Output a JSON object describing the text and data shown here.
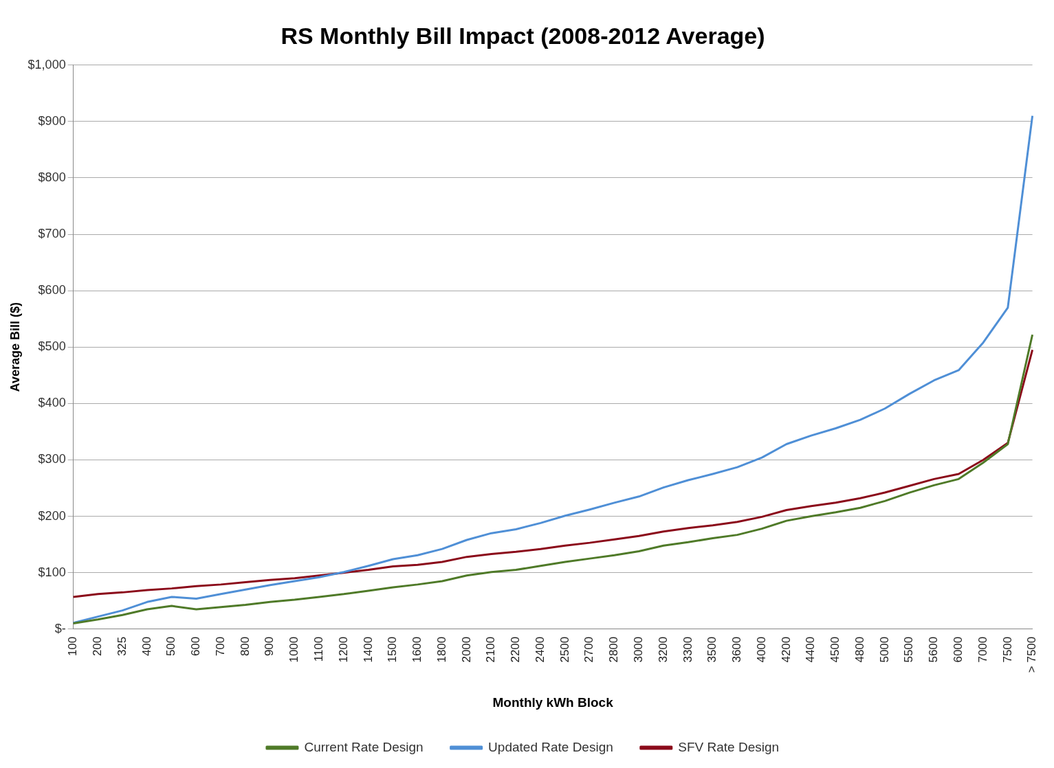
{
  "chart_data": {
    "type": "line",
    "title": "RS Monthly Bill Impact (2008-2012 Average)",
    "xlabel": "Monthly kWh Block",
    "ylabel": "Average Bill ($)",
    "categories": [
      "100",
      "200",
      "325",
      "400",
      "500",
      "600",
      "700",
      "800",
      "900",
      "1000",
      "1100",
      "1200",
      "1400",
      "1500",
      "1600",
      "1800",
      "2000",
      "2100",
      "2200",
      "2400",
      "2500",
      "2700",
      "2800",
      "3000",
      "3200",
      "3300",
      "3500",
      "3600",
      "4000",
      "4200",
      "4400",
      "4500",
      "4800",
      "5000",
      "5500",
      "5600",
      "6000",
      "7000",
      "7500",
      "> 7500"
    ],
    "series": [
      {
        "name": "Current Rate Design",
        "color": "#4f7a28",
        "values": [
          10,
          17,
          25,
          35,
          41,
          35,
          39,
          43,
          48,
          52,
          57,
          62,
          68,
          74,
          79,
          85,
          95,
          101,
          105,
          112,
          119,
          125,
          131,
          138,
          148,
          154,
          161,
          167,
          178,
          192,
          200,
          207,
          215,
          227,
          242,
          255,
          266,
          295,
          328,
          522
        ]
      },
      {
        "name": "Updated Rate Design",
        "color": "#4f8fd6",
        "values": [
          11,
          22,
          33,
          48,
          57,
          54,
          62,
          70,
          78,
          85,
          92,
          101,
          112,
          124,
          131,
          142,
          158,
          170,
          177,
          188,
          201,
          212,
          224,
          235,
          251,
          264,
          275,
          287,
          304,
          328,
          343,
          356,
          371,
          391,
          417,
          441,
          459,
          508,
          570,
          910
        ]
      },
      {
        "name": "SFV Rate Design",
        "color": "#8b0a1a",
        "values": [
          57,
          62,
          65,
          69,
          72,
          76,
          79,
          83,
          87,
          90,
          95,
          100,
          105,
          111,
          114,
          119,
          128,
          133,
          137,
          142,
          148,
          153,
          159,
          165,
          173,
          179,
          184,
          190,
          199,
          211,
          218,
          224,
          232,
          242,
          254,
          266,
          275,
          300,
          330,
          495
        ]
      }
    ],
    "ylim": [
      0,
      1000
    ],
    "yticks": [
      {
        "value": 0,
        "label": "$-"
      },
      {
        "value": 100,
        "label": "$100"
      },
      {
        "value": 200,
        "label": "$200"
      },
      {
        "value": 300,
        "label": "$300"
      },
      {
        "value": 400,
        "label": "$400"
      },
      {
        "value": 500,
        "label": "$500"
      },
      {
        "value": 600,
        "label": "$600"
      },
      {
        "value": 700,
        "label": "$700"
      },
      {
        "value": 800,
        "label": "$800"
      },
      {
        "value": 900,
        "label": "$900"
      },
      {
        "value": 1000,
        "label": "$1,000"
      }
    ],
    "grid": "y",
    "legend": "bottom",
    "marker": "none",
    "line_style": "solid"
  }
}
